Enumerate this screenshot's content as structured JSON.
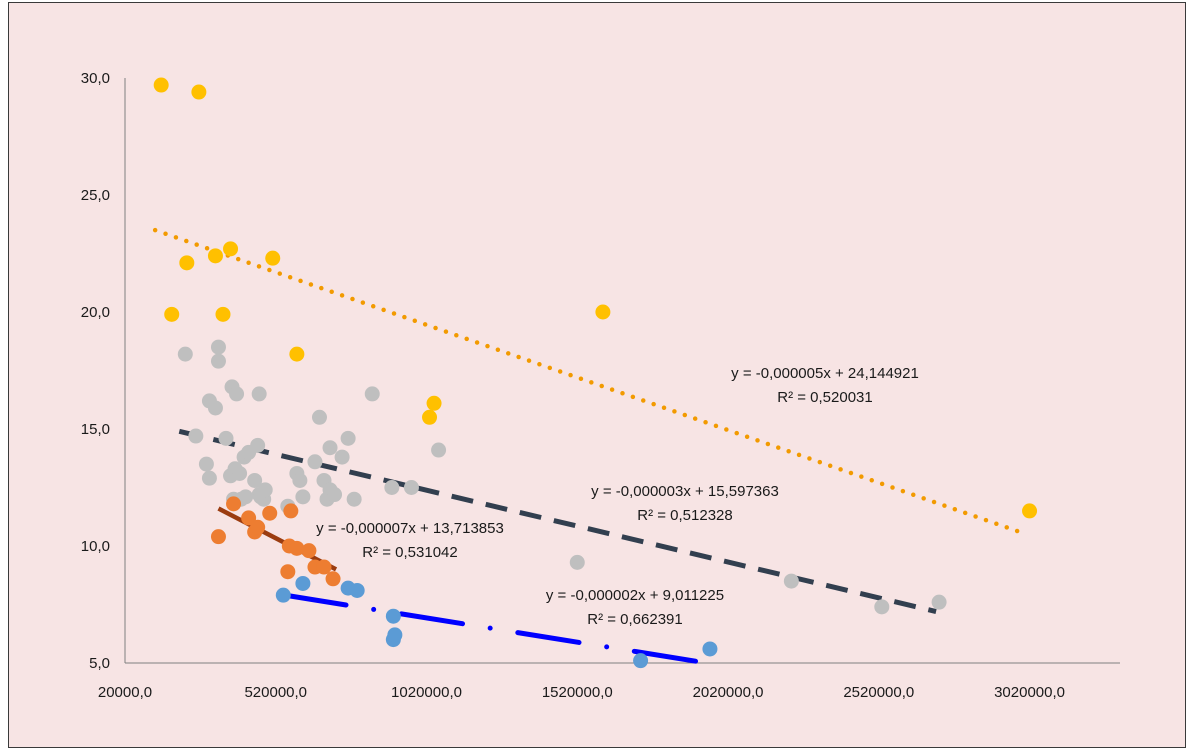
{
  "chart_data": {
    "type": "scatter",
    "title": "",
    "xlabel": "",
    "ylabel": "",
    "xlim": [
      20000,
      3320000
    ],
    "ylim": [
      5,
      30
    ],
    "x_ticks": [
      20000,
      520000,
      1020000,
      1520000,
      2020000,
      2520000,
      3020000
    ],
    "x_tick_labels": [
      "20000,0",
      "520000,0",
      "1020000,0",
      "1520000,0",
      "2020000,0",
      "2520000,0",
      "3020000,0"
    ],
    "y_ticks": [
      5,
      10,
      15,
      20,
      25,
      30
    ],
    "y_tick_labels": [
      "5,0",
      "10,0",
      "15,0",
      "20,0",
      "25,0",
      "30,0"
    ],
    "grid": false,
    "legend": "none",
    "series": [
      {
        "color": "#ffc000",
        "points": [
          [
            140000,
            29.7
          ],
          [
            265000,
            29.4
          ],
          [
            175000,
            19.9
          ],
          [
            225000,
            22.1
          ],
          [
            320000,
            22.4
          ],
          [
            370000,
            22.7
          ],
          [
            345000,
            19.9
          ],
          [
            510000,
            22.3
          ],
          [
            590000,
            18.2
          ],
          [
            1030000,
            15.5
          ],
          [
            1045000,
            16.1
          ],
          [
            1605000,
            20.0
          ],
          [
            3020000,
            11.5
          ]
        ],
        "trendline": {
          "x": [
            120000,
            3010000
          ],
          "y": [
            23.5,
            10.5
          ],
          "style": "dotted",
          "color": "#f29a00",
          "equation": "y = -0,000005x + 24,144921",
          "r2": "R² = 0,520031"
        }
      },
      {
        "color": "#bfbfbf",
        "points": [
          [
            220000,
            18.2
          ],
          [
            255000,
            14.7
          ],
          [
            290000,
            13.5
          ],
          [
            300000,
            12.9
          ],
          [
            300000,
            16.2
          ],
          [
            320000,
            15.9
          ],
          [
            330000,
            18.5
          ],
          [
            330000,
            17.9
          ],
          [
            355000,
            14.6
          ],
          [
            370000,
            13.0
          ],
          [
            380000,
            12.0
          ],
          [
            385000,
            13.3
          ],
          [
            375000,
            16.8
          ],
          [
            390000,
            16.5
          ],
          [
            400000,
            13.1
          ],
          [
            405000,
            12.0
          ],
          [
            415000,
            13.8
          ],
          [
            420000,
            12.1
          ],
          [
            430000,
            14.0
          ],
          [
            450000,
            12.8
          ],
          [
            460000,
            14.3
          ],
          [
            465000,
            12.2
          ],
          [
            465000,
            16.5
          ],
          [
            470000,
            12.1
          ],
          [
            480000,
            12.0
          ],
          [
            485000,
            12.4
          ],
          [
            560000,
            11.7
          ],
          [
            590000,
            13.1
          ],
          [
            600000,
            12.8
          ],
          [
            610000,
            12.1
          ],
          [
            650000,
            13.6
          ],
          [
            665000,
            15.5
          ],
          [
            680000,
            12.8
          ],
          [
            690000,
            12.0
          ],
          [
            700000,
            14.2
          ],
          [
            700000,
            12.4
          ],
          [
            715000,
            12.2
          ],
          [
            740000,
            13.8
          ],
          [
            760000,
            14.6
          ],
          [
            780000,
            12.0
          ],
          [
            840000,
            16.5
          ],
          [
            905000,
            12.5
          ],
          [
            970000,
            12.5
          ],
          [
            1060000,
            14.1
          ],
          [
            1520000,
            9.3
          ],
          [
            2230000,
            8.5
          ],
          [
            2530000,
            7.4
          ],
          [
            2720000,
            7.6
          ]
        ],
        "trendline": {
          "x": [
            200000,
            2710000
          ],
          "y": [
            14.9,
            7.2
          ],
          "style": "dashed",
          "color": "#323f4f",
          "equation": "y = -0,000003x + 15,597363",
          "r2": "R² = 0,512328"
        }
      },
      {
        "color": "#ed7d31",
        "points": [
          [
            330000,
            10.4
          ],
          [
            380000,
            11.8
          ],
          [
            430000,
            11.2
          ],
          [
            450000,
            10.6
          ],
          [
            460000,
            10.8
          ],
          [
            500000,
            11.4
          ],
          [
            570000,
            11.5
          ],
          [
            565000,
            10.0
          ],
          [
            560000,
            8.9
          ],
          [
            590000,
            9.9
          ],
          [
            630000,
            9.8
          ],
          [
            650000,
            9.1
          ],
          [
            680000,
            9.1
          ],
          [
            710000,
            8.6
          ]
        ],
        "trendline": {
          "x": [
            330000,
            720000
          ],
          "y": [
            11.6,
            9.0
          ],
          "style": "solid",
          "color": "#9b3c10",
          "equation": "y = -0,000007x + 13,713853",
          "r2": "R² = 0,531042"
        }
      },
      {
        "color": "#5b9bd5",
        "points": [
          [
            545000,
            7.9
          ],
          [
            610000,
            8.4
          ],
          [
            760000,
            8.2
          ],
          [
            790000,
            8.1
          ],
          [
            910000,
            7.0
          ],
          [
            910000,
            6.0
          ],
          [
            915000,
            6.2
          ],
          [
            1730000,
            5.1
          ],
          [
            1960000,
            5.6
          ]
        ],
        "trendline": {
          "x": [
            550000,
            1950000
          ],
          "y": [
            7.9,
            5.0
          ],
          "style": "dash-dot",
          "color": "#0000ff",
          "equation": "y = -0,000002x + 9,011225",
          "r2": "R² = 0,662391"
        }
      }
    ]
  }
}
